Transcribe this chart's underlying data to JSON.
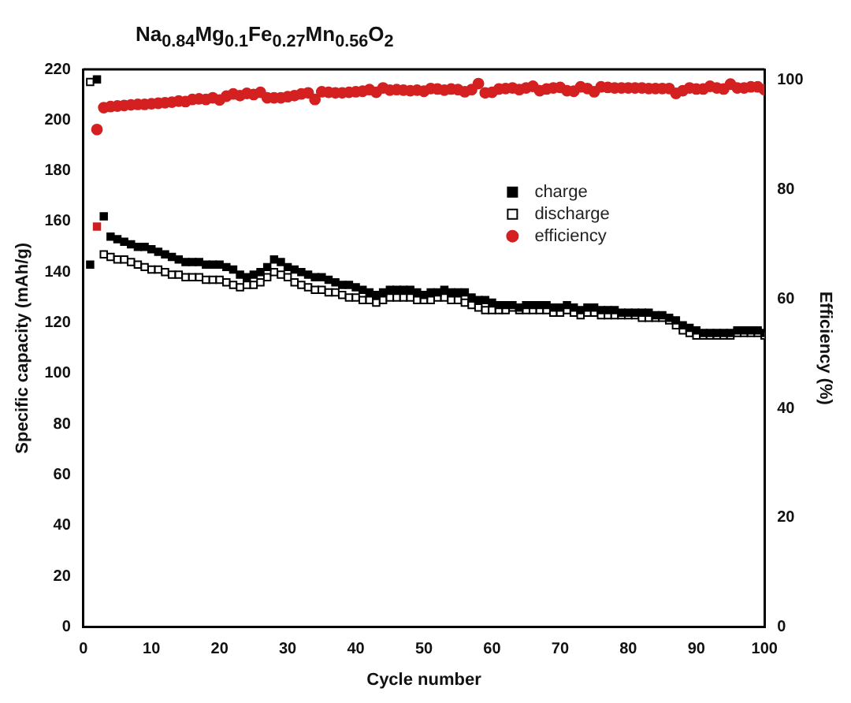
{
  "chart_data": {
    "type": "scatter",
    "title": "Na$_{0.84}$Mg$_{0.1}$Fe$_{0.27}$Mn$_{0.56}$O$_{2}$",
    "xlabel": "Cycle number",
    "ylabel": "Specific capacity (mAh/g)",
    "y2label": "Efficiency (%)",
    "x": [
      1,
      2,
      3,
      4,
      5,
      6,
      7,
      8,
      9,
      10,
      11,
      12,
      13,
      14,
      15,
      16,
      17,
      18,
      19,
      20,
      21,
      22,
      23,
      24,
      25,
      26,
      27,
      28,
      29,
      30,
      31,
      32,
      33,
      34,
      35,
      36,
      37,
      38,
      39,
      40,
      41,
      42,
      43,
      44,
      45,
      46,
      47,
      48,
      49,
      50,
      51,
      52,
      53,
      54,
      55,
      56,
      57,
      58,
      59,
      60,
      61,
      62,
      63,
      64,
      65,
      66,
      67,
      68,
      69,
      70,
      71,
      72,
      73,
      74,
      75,
      76,
      77,
      78,
      79,
      80,
      81,
      82,
      83,
      84,
      85,
      86,
      87,
      88,
      89,
      90,
      91,
      92,
      93,
      94,
      95,
      96,
      97,
      98,
      99,
      100
    ],
    "xlim": [
      0,
      100
    ],
    "xticks": [
      0,
      10,
      20,
      30,
      40,
      50,
      60,
      70,
      80,
      90,
      100
    ],
    "ylim": [
      0,
      220
    ],
    "yticks": [
      0,
      20,
      40,
      60,
      80,
      100,
      120,
      140,
      160,
      180,
      200,
      220
    ],
    "y2lim": [
      0,
      102
    ],
    "y2ticks": [
      0,
      20,
      40,
      60,
      80,
      100
    ],
    "legend": "right",
    "grid": false,
    "series": [
      {
        "name": "charge",
        "color": "#000000",
        "marker": "square",
        "values": [
          143,
          216,
          162,
          154,
          153,
          152,
          151,
          150,
          150,
          149,
          148,
          147,
          146,
          145,
          144,
          144,
          144,
          143,
          143,
          143,
          142,
          141,
          139,
          138,
          139,
          140,
          142,
          145,
          144,
          142,
          141,
          140,
          139,
          138,
          138,
          137,
          136,
          135,
          135,
          134,
          133,
          132,
          131,
          132,
          133,
          133,
          133,
          133,
          132,
          131,
          132,
          132,
          133,
          132,
          132,
          132,
          130,
          129,
          129,
          128,
          127,
          127,
          127,
          126,
          127,
          127,
          127,
          127,
          126,
          126,
          127,
          126,
          125,
          126,
          126,
          125,
          125,
          125,
          124,
          124,
          124,
          124,
          124,
          123,
          123,
          122,
          121,
          119,
          118,
          117,
          116,
          116,
          116,
          116,
          116,
          117,
          117,
          117,
          117,
          116
        ]
      },
      {
        "name": "discharge",
        "color": "#000000",
        "marker": "square",
        "colors": [
          "#ffffff",
          "#cc1f1f",
          "#ffffff",
          "#ffffff",
          "#ffffff",
          "#ffffff",
          "#ffffff",
          "#ffffff",
          "#ffffff",
          "#ffffff",
          "#ffffff",
          "#ffffff",
          "#ffffff",
          "#ffffff",
          "#ffffff",
          "#ffffff",
          "#ffffff",
          "#ffffff",
          "#ffffff",
          "#ffffff",
          "#ffffff",
          "#ffffff",
          "#ffffff",
          "#ffffff",
          "#ffffff",
          "#ffffff",
          "#ffffff",
          "#ffffff",
          "#ffffff",
          "#ffffff",
          "#ffffff",
          "#ffffff",
          "#ffffff",
          "#ffffff",
          "#ffffff",
          "#ffffff",
          "#ffffff",
          "#ffffff",
          "#ffffff",
          "#ffffff",
          "#ffffff",
          "#ffffff",
          "#ffffff",
          "#ffffff",
          "#ffffff",
          "#ffffff",
          "#ffffff",
          "#ffffff",
          "#ffffff",
          "#ffffff",
          "#ffffff",
          "#ffffff",
          "#ffffff",
          "#ffffff",
          "#ffffff",
          "#ffffff",
          "#ffffff",
          "#ffffff",
          "#ffffff",
          "#ffffff",
          "#ffffff",
          "#ffffff",
          "#ffffff",
          "#ffffff",
          "#ffffff",
          "#ffffff",
          "#ffffff",
          "#ffffff",
          "#ffffff",
          "#ffffff",
          "#ffffff",
          "#ffffff",
          "#ffffff",
          "#ffffff",
          "#ffffff",
          "#ffffff",
          "#ffffff",
          "#ffffff",
          "#ffffff",
          "#ffffff",
          "#ffffff",
          "#ffffff",
          "#ffffff",
          "#ffffff",
          "#ffffff",
          "#ffffff",
          "#ffffff",
          "#ffffff",
          "#ffffff",
          "#ffffff",
          "#ffffff",
          "#ffffff",
          "#ffffff",
          "#ffffff",
          "#ffffff",
          "#ffffff",
          "#ffffff",
          "#ffffff",
          "#ffffff",
          "#ffffff"
        ],
        "values": [
          215,
          158,
          147,
          146,
          145,
          145,
          144,
          143,
          142,
          141,
          141,
          140,
          139,
          139,
          138,
          138,
          138,
          137,
          137,
          137,
          136,
          135,
          134,
          135,
          135,
          136,
          138,
          140,
          139,
          138,
          136,
          135,
          134,
          133,
          133,
          132,
          132,
          131,
          130,
          130,
          129,
          129,
          128,
          129,
          130,
          130,
          130,
          130,
          129,
          129,
          129,
          130,
          130,
          129,
          129,
          128,
          127,
          126,
          125,
          125,
          125,
          125,
          126,
          125,
          125,
          125,
          125,
          125,
          124,
          124,
          125,
          124,
          123,
          124,
          124,
          123,
          123,
          123,
          123,
          123,
          123,
          122,
          122,
          122,
          122,
          121,
          119,
          117,
          116,
          115,
          115,
          115,
          115,
          115,
          115,
          116,
          116,
          116,
          116,
          115
        ]
      },
      {
        "name": "efficiency",
        "color": "#d42020",
        "marker": "circle",
        "axis": "y2",
        "values": [
          null,
          91,
          95,
          95.2,
          95.3,
          95.4,
          95.5,
          95.6,
          95.6,
          95.7,
          95.8,
          95.9,
          96,
          96.2,
          96.1,
          96.5,
          96.6,
          96.5,
          96.8,
          96.4,
          97.1,
          97.5,
          97.2,
          97.6,
          97.4,
          97.8,
          96.8,
          96.8,
          96.8,
          97,
          97.2,
          97.5,
          97.7,
          96.5,
          97.9,
          97.8,
          97.7,
          97.7,
          97.8,
          97.9,
          98,
          98.3,
          97.8,
          98.6,
          98.2,
          98.3,
          98.2,
          98.1,
          98.2,
          98,
          98.5,
          98.4,
          98.2,
          98.4,
          98.3,
          97.9,
          98.3,
          99.4,
          97.7,
          97.8,
          98.4,
          98.5,
          98.6,
          98.3,
          98.6,
          98.9,
          98.1,
          98.4,
          98.6,
          98.7,
          98.1,
          98,
          98.8,
          98.5,
          97.9,
          98.8,
          98.7,
          98.6,
          98.6,
          98.6,
          98.6,
          98.6,
          98.5,
          98.5,
          98.5,
          98.5,
          97.6,
          98.1,
          98.6,
          98.4,
          98.4,
          98.9,
          98.6,
          98.4,
          99.3,
          98.6,
          98.6,
          98.8,
          98.8,
          98.3
        ]
      }
    ]
  }
}
